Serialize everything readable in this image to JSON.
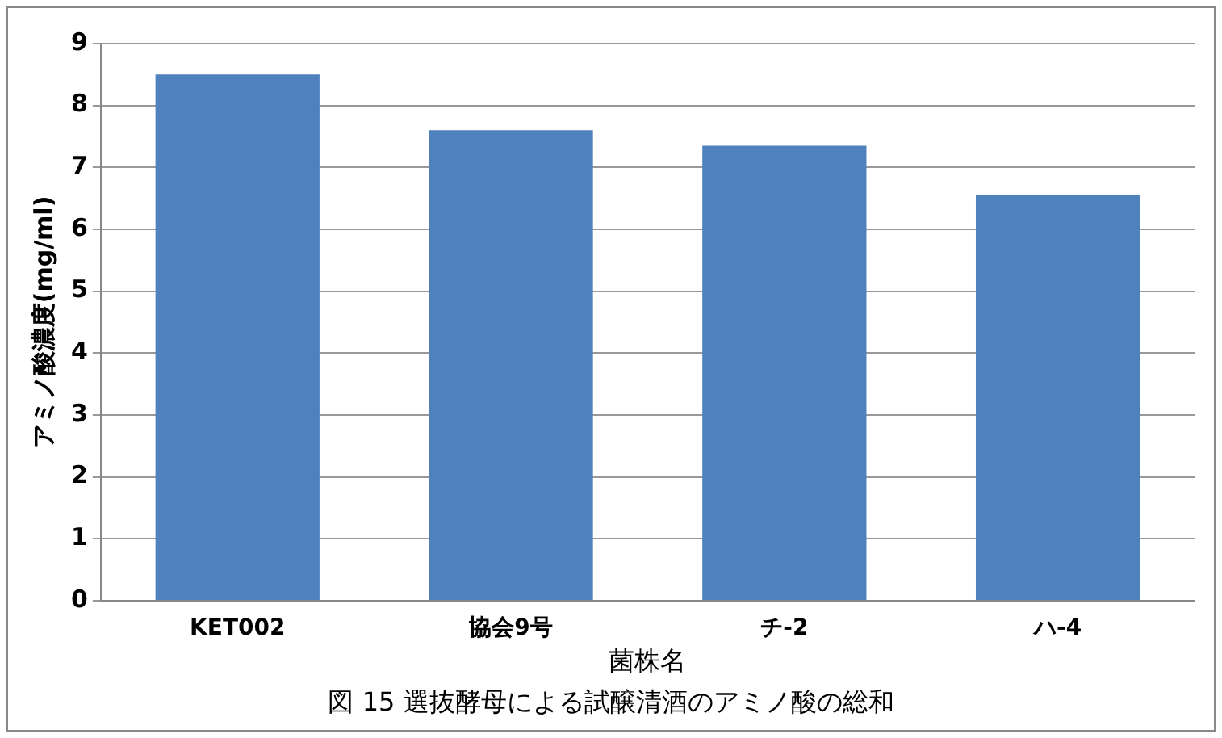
{
  "chart_data": {
    "type": "bar",
    "xlabel": "菌株名",
    "ylabel": "アミノ酸濃度(mg/ml)",
    "categories": [
      "KET002",
      "協会9号",
      "チ-2",
      "ハ-4"
    ],
    "values": [
      8.5,
      7.6,
      7.35,
      6.55
    ],
    "color": "#4f81bd",
    "ylim": [
      0,
      9
    ],
    "yticks": [
      0,
      1,
      2,
      3,
      4,
      5,
      6,
      7,
      8,
      9
    ],
    "grid": "y",
    "legend": false,
    "annotations": [
      "図 15 選抜酵母による試醸清酒のアミノ酸の総和"
    ]
  }
}
